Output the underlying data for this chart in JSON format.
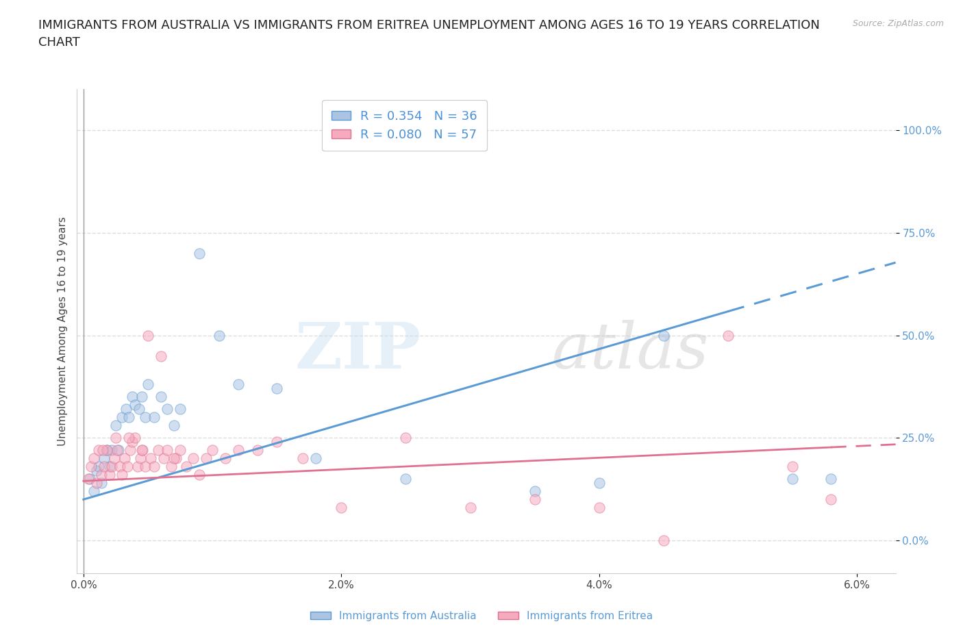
{
  "title": "IMMIGRANTS FROM AUSTRALIA VS IMMIGRANTS FROM ERITREA UNEMPLOYMENT AMONG AGES 16 TO 19 YEARS CORRELATION\nCHART",
  "source": "Source: ZipAtlas.com",
  "ylabel_label": "Unemployment Among Ages 16 to 19 years",
  "xlim": [
    0.0,
    6.0
  ],
  "ylim": [
    -5,
    108
  ],
  "australia_R": 0.354,
  "australia_N": 36,
  "eritrea_R": 0.08,
  "eritrea_N": 57,
  "australia_color": "#aac4e2",
  "eritrea_color": "#f5aabe",
  "australia_line_color": "#5b9bd5",
  "eritrea_line_color": "#e07090",
  "watermark_zip": "ZIP",
  "watermark_atlas": "atlas",
  "legend_label_aus": "Immigrants from Australia",
  "legend_label_eri": "Immigrants from Eritrea",
  "australia_x": [
    0.05,
    0.08,
    0.1,
    0.12,
    0.14,
    0.16,
    0.18,
    0.2,
    0.22,
    0.25,
    0.27,
    0.3,
    0.33,
    0.35,
    0.38,
    0.4,
    0.43,
    0.45,
    0.48,
    0.5,
    0.55,
    0.6,
    0.65,
    0.7,
    0.75,
    0.9,
    1.05,
    1.2,
    1.5,
    1.8,
    2.5,
    3.5,
    4.0,
    4.5,
    5.5,
    5.8
  ],
  "australia_y": [
    15,
    12,
    17,
    18,
    14,
    20,
    22,
    18,
    22,
    28,
    22,
    30,
    32,
    30,
    35,
    33,
    32,
    35,
    30,
    38,
    30,
    35,
    32,
    28,
    32,
    70,
    50,
    38,
    37,
    20,
    15,
    12,
    14,
    50,
    15,
    15
  ],
  "eritrea_x": [
    0.04,
    0.06,
    0.08,
    0.1,
    0.12,
    0.14,
    0.16,
    0.18,
    0.2,
    0.22,
    0.24,
    0.26,
    0.28,
    0.3,
    0.32,
    0.34,
    0.36,
    0.38,
    0.4,
    0.42,
    0.44,
    0.46,
    0.48,
    0.5,
    0.52,
    0.55,
    0.58,
    0.62,
    0.65,
    0.68,
    0.72,
    0.75,
    0.8,
    0.85,
    0.9,
    0.95,
    1.0,
    1.1,
    1.2,
    1.35,
    1.5,
    1.7,
    2.0,
    2.5,
    3.0,
    3.5,
    4.0,
    4.5,
    5.0,
    5.5,
    5.8,
    0.15,
    0.25,
    0.35,
    0.45,
    0.6,
    0.7
  ],
  "eritrea_y": [
    15,
    18,
    20,
    14,
    22,
    16,
    18,
    22,
    16,
    18,
    20,
    22,
    18,
    16,
    20,
    18,
    22,
    24,
    25,
    18,
    20,
    22,
    18,
    50,
    20,
    18,
    22,
    20,
    22,
    18,
    20,
    22,
    18,
    20,
    16,
    20,
    22,
    20,
    22,
    22,
    24,
    20,
    8,
    25,
    8,
    10,
    8,
    0,
    50,
    18,
    10,
    22,
    25,
    25,
    22,
    45,
    20
  ],
  "aus_trend": [
    10.0,
    65.0
  ],
  "eri_trend": [
    14.5,
    23.0
  ],
  "aus_solid_end": 5.0,
  "eri_solid_end": 5.8,
  "background_color": "#ffffff",
  "grid_color": "#dddddd",
  "title_fontsize": 13,
  "axis_fontsize": 11,
  "tick_fontsize": 11,
  "scatter_alpha": 0.55,
  "scatter_size": 120
}
